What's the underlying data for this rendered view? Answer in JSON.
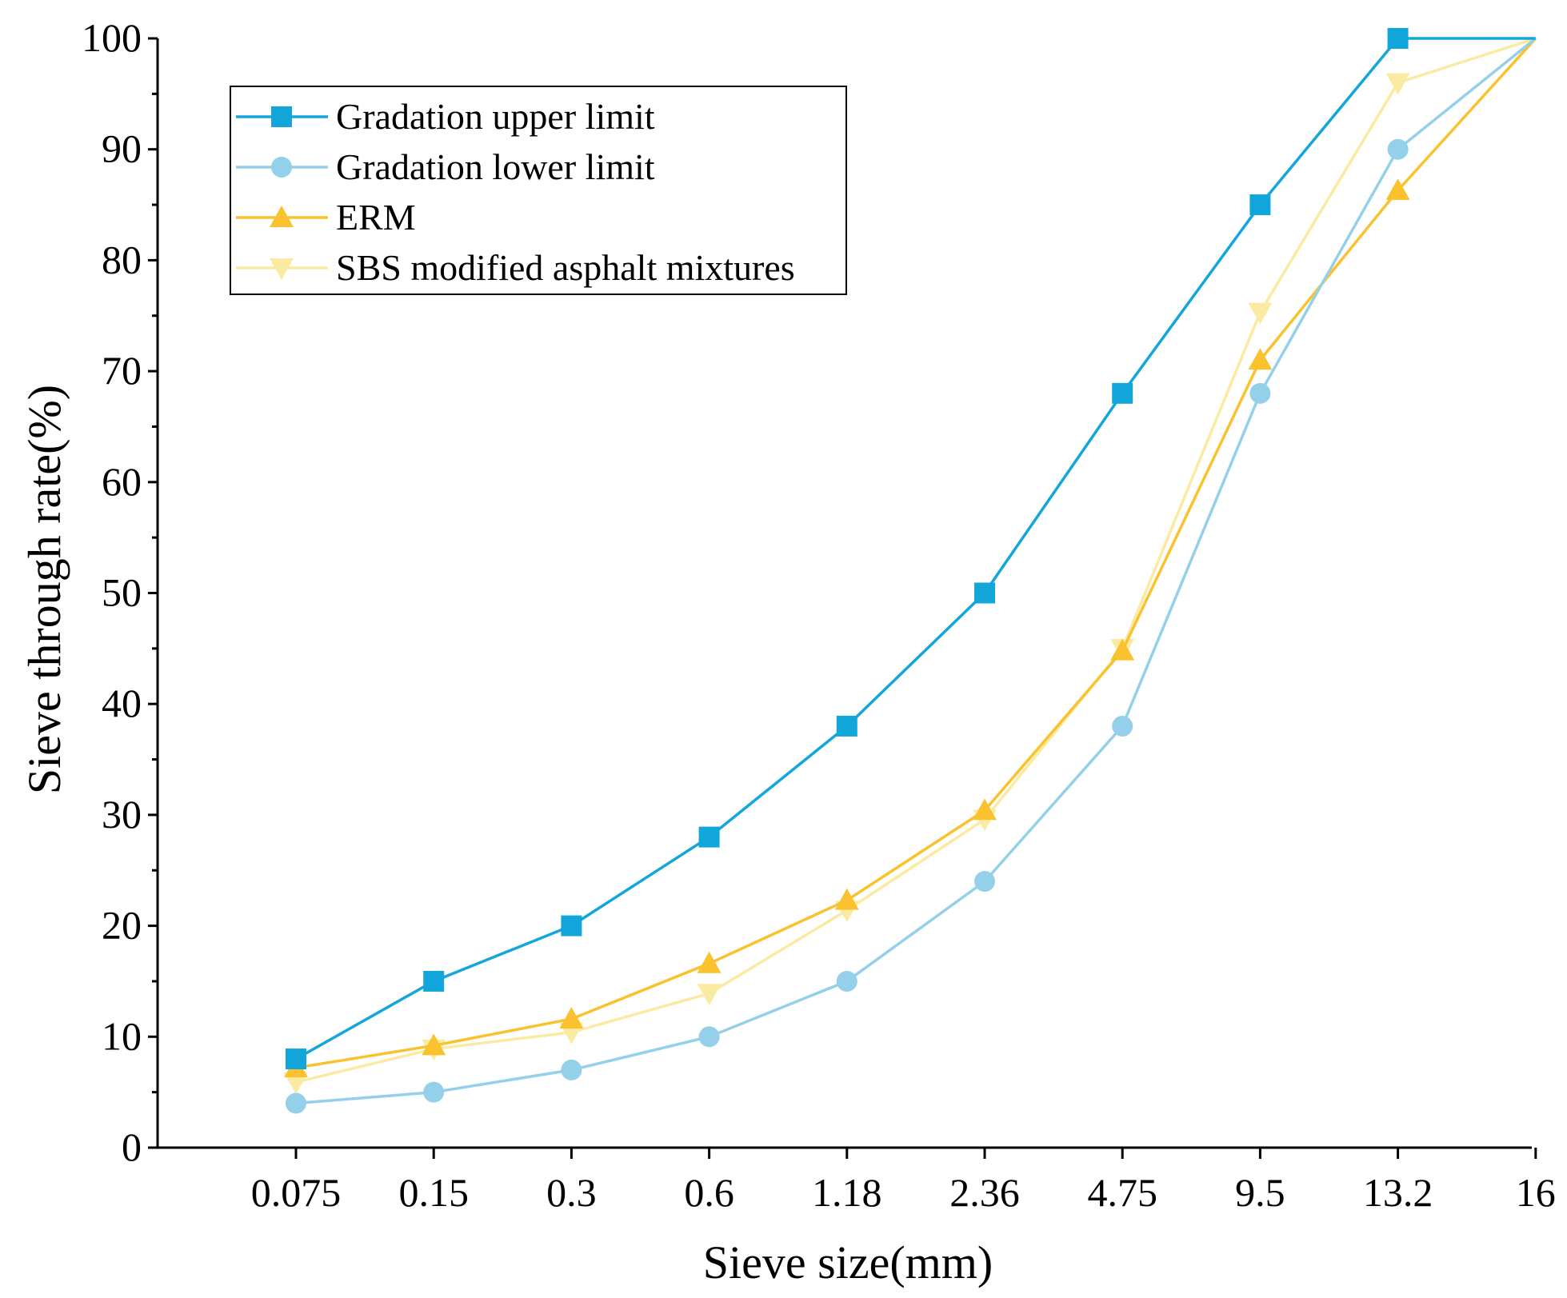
{
  "chart_data": {
    "type": "line",
    "xlabel": "Sieve size(mm)",
    "ylabel": "Sieve through rate(%)",
    "categories": [
      "0.075",
      "0.15",
      "0.3",
      "0.6",
      "1.18",
      "2.36",
      "4.75",
      "9.5",
      "13.2",
      "16"
    ],
    "ylim": [
      0,
      100
    ],
    "yticks": [
      "0",
      "10",
      "20",
      "30",
      "40",
      "50",
      "60",
      "70",
      "80",
      "90",
      "100"
    ],
    "grid": false,
    "legend_position": "top-left",
    "series": [
      {
        "name": "Gradation upper limit",
        "marker": "square",
        "color": "#13A6DB",
        "values": [
          8,
          15,
          20,
          28,
          38,
          50,
          68,
          85,
          100,
          100
        ]
      },
      {
        "name": "Gradation lower limit",
        "marker": "circle",
        "color": "#95D0EA",
        "values": [
          4,
          5,
          7,
          10,
          15,
          24,
          38,
          68,
          90,
          100
        ]
      },
      {
        "name": "ERM",
        "marker": "triangle-up",
        "color": "#F9C22E",
        "values": [
          7.2,
          9.2,
          11.6,
          16.6,
          22.3,
          30.4,
          44.8,
          71,
          86.3,
          100
        ]
      },
      {
        "name": "SBS modified asphalt mixtures",
        "marker": "triangle-down",
        "color": "#FBEBA2",
        "values": [
          5.9,
          8.9,
          10.4,
          13.9,
          21.4,
          29.6,
          45,
          75.3,
          96,
          100
        ]
      }
    ]
  }
}
